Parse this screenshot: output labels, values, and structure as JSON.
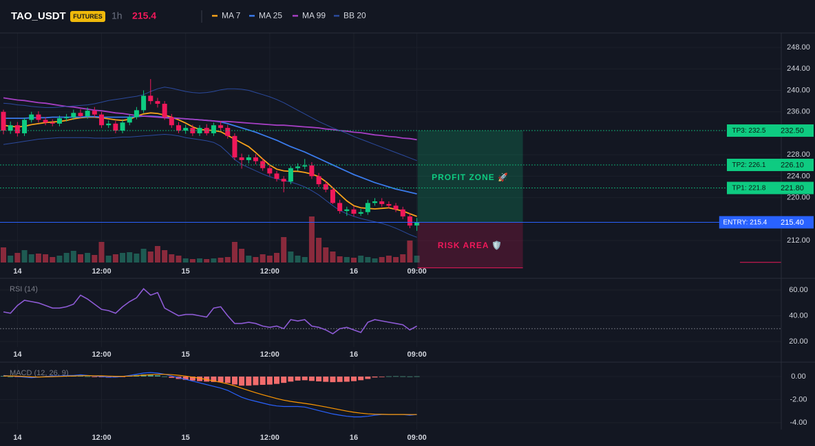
{
  "header": {
    "symbol": "TAO_USDT",
    "badge": "FUTURES",
    "interval": "1h",
    "price": 215.4
  },
  "chart_data": [
    {
      "type": "candlestick",
      "categories": [
        null,
        null,
        "14",
        null,
        null,
        null,
        null,
        null,
        null,
        null,
        null,
        null,
        null,
        null,
        "12:00",
        null,
        null,
        null,
        null,
        null,
        null,
        null,
        null,
        null,
        null,
        null,
        "15",
        null,
        null,
        null,
        null,
        null,
        null,
        null,
        null,
        null,
        null,
        null,
        "12:00",
        null,
        null,
        null,
        null,
        null,
        null,
        null,
        null,
        null,
        null,
        null,
        "16",
        null,
        null,
        null,
        null,
        null,
        null,
        null,
        null,
        "09:00"
      ],
      "open": [
        236,
        232.5,
        233.5,
        232,
        234.5,
        235.5,
        234.5,
        234,
        233.8,
        234.8,
        235,
        235.8,
        235.2,
        236.2,
        235.5,
        233.5,
        233.8,
        232.5,
        234,
        235,
        236.3,
        239,
        238,
        237.5,
        235,
        233.5,
        232.5,
        233,
        232,
        233,
        232,
        233.5,
        233,
        231.5,
        227.5,
        227,
        227.5,
        226.8,
        225.5,
        224.5,
        223.5,
        223,
        225.5,
        225.8,
        226,
        224,
        222.5,
        221.5,
        219,
        217.5,
        217.8,
        217,
        217.3,
        219,
        219.3,
        218.8,
        218.5,
        217.8,
        216.5,
        214.8
      ],
      "high": [
        236.4,
        234.2,
        234.1,
        234.9,
        236,
        236.1,
        235,
        234.6,
        235.3,
        235.6,
        236.4,
        236.5,
        236.8,
        236.9,
        236,
        234.4,
        234.3,
        234.6,
        235.5,
        236.9,
        240,
        242.1,
        238.6,
        238,
        235.6,
        234.1,
        233.6,
        233.6,
        233.5,
        233.7,
        234,
        234.2,
        233.6,
        232,
        228.2,
        228,
        228.1,
        227.3,
        226.2,
        225,
        224,
        225.9,
        226.4,
        227.2,
        226.6,
        224.6,
        223.1,
        222,
        219.6,
        218.3,
        218.4,
        217.9,
        219.6,
        219.9,
        219.9,
        219.3,
        219,
        218.3,
        217.1,
        216.2
      ],
      "low": [
        231.8,
        231.9,
        231.4,
        231.5,
        234,
        234,
        233.5,
        233.3,
        233.3,
        234.2,
        234.5,
        234.9,
        234.7,
        235,
        233,
        233,
        232,
        232,
        233.5,
        234.6,
        235.8,
        237.4,
        236.8,
        234.5,
        233,
        232,
        231.9,
        231.5,
        231.5,
        231.6,
        231.5,
        232.5,
        231,
        227,
        225.4,
        226.4,
        226.2,
        225,
        224,
        223,
        221,
        222.5,
        225,
        225.3,
        223.5,
        222,
        221,
        218.8,
        217,
        216.6,
        216.5,
        216.6,
        216.8,
        218.5,
        218.3,
        218,
        217.3,
        216,
        214.3,
        213.8
      ],
      "close": [
        232.5,
        233.5,
        232,
        234.5,
        235.5,
        234.5,
        234,
        233.8,
        234.8,
        235,
        235.8,
        235.2,
        236.2,
        235.5,
        233.5,
        233.8,
        232.5,
        234,
        235,
        236.3,
        239,
        238,
        237.5,
        235,
        233.5,
        232.5,
        233,
        232,
        233,
        232,
        233.5,
        233,
        231.5,
        227.5,
        227,
        227.5,
        226.8,
        225.5,
        224.5,
        223.5,
        223,
        225.5,
        225.8,
        226,
        224,
        222.5,
        221.5,
        219,
        217.5,
        217.8,
        217,
        217.3,
        219,
        219.3,
        218.8,
        218.5,
        217.8,
        216.5,
        214.8,
        215.4
      ],
      "up_color": "#0ecb81",
      "down_color": "#f0185a",
      "ylim": [
        207.9,
        250.7
      ],
      "yticks": [
        {
          "value": 248,
          "label": "248.00"
        },
        {
          "value": 244,
          "label": "244.00"
        },
        {
          "value": 240,
          "label": "240.00"
        },
        {
          "value": 236,
          "label": "236.00"
        },
        {
          "value": 228,
          "label": "228.00"
        },
        {
          "value": 224,
          "label": "224.00"
        },
        {
          "value": 220,
          "label": "220.00"
        },
        {
          "value": 212,
          "label": "212.00"
        }
      ],
      "grid": true,
      "series": [
        {
          "name": "MA 7",
          "color": "#f7a21b",
          "values": [
            233.5,
            233.3,
            233.2,
            233.3,
            233.6,
            233.8,
            234,
            234.1,
            234.2,
            234.4,
            234.7,
            234.9,
            235,
            235,
            234.9,
            234.7,
            234.5,
            234.4,
            234.6,
            235.2,
            235.6,
            235.8,
            235.7,
            235.4,
            235,
            234.5,
            233.9,
            233.2,
            232.7,
            232.6,
            232.5,
            232.3,
            231.6,
            230.9,
            230.2,
            229.5,
            228.4,
            227.2,
            226.1,
            225.3,
            225,
            224.9,
            224.9,
            224.7,
            224.4,
            223.9,
            223,
            221.8,
            220.6,
            219.4,
            218.5,
            218.1,
            218,
            217.9,
            218,
            218.1,
            217.8,
            217.5,
            217,
            216.5
          ]
        },
        {
          "name": "MA 25",
          "color": "#3a7bec",
          "values": [
            234.8,
            234.8,
            234.8,
            234.8,
            234.9,
            234.9,
            234.9,
            235,
            235,
            235,
            235,
            235,
            235.1,
            235.1,
            235,
            235,
            235,
            235,
            235,
            235.1,
            235.2,
            235.2,
            235.1,
            235,
            234.9,
            234.8,
            234.7,
            234.6,
            234.5,
            234.4,
            234.3,
            234.1,
            233.8,
            233.4,
            233,
            232.6,
            232.2,
            231.7,
            231.2,
            230.7,
            230.1,
            229.5,
            229,
            228.5,
            227.9,
            227.3,
            226.7,
            226.1,
            225.5,
            224.9,
            224.3,
            223.8,
            223.3,
            222.8,
            222.4,
            222,
            221.6,
            221.3,
            221,
            220.7
          ]
        },
        {
          "name": "MA 99",
          "color": "#a63fc4",
          "values": [
            238.6,
            238.4,
            238.2,
            238.1,
            237.9,
            237.7,
            237.6,
            237.4,
            237.2,
            237,
            236.9,
            236.7,
            236.5,
            236.3,
            236.2,
            236,
            235.8,
            235.7,
            235.5,
            235.3,
            235.2,
            235.1,
            235,
            234.9,
            234.8,
            234.8,
            234.7,
            234.6,
            234.5,
            234.4,
            234.3,
            234.2,
            234.2,
            234.1,
            234,
            233.9,
            233.8,
            233.7,
            233.6,
            233.5,
            233.5,
            233.4,
            233.3,
            233.2,
            233.1,
            233,
            232.8,
            232.7,
            232.5,
            232.4,
            232.2,
            232.1,
            231.9,
            231.7,
            231.6,
            231.4,
            231.3,
            231.1,
            231,
            230.8
          ]
        },
        {
          "name": "BB 20",
          "color": "#2b4a9e",
          "values": [
            237.6,
            237.5,
            237.3,
            237.2,
            237,
            236.9,
            236.8,
            236.8,
            236.9,
            237,
            237.1,
            237.2,
            237.3,
            237.5,
            237.8,
            238.1,
            238.3,
            238.5,
            238.7,
            238.9,
            239.2,
            239.8,
            240.3,
            240.6,
            240.4,
            240.1,
            239.8,
            239.6,
            239.5,
            239.6,
            239.8,
            240.1,
            240.3,
            240.3,
            240.2,
            240,
            239.6,
            239.2,
            238.8,
            238.3,
            237.7,
            237,
            236.3,
            235.6,
            234.9,
            234.2,
            233.6,
            233,
            232.5,
            232,
            231.4,
            230.9,
            230.4,
            229.9,
            229.4,
            228.9,
            228.4,
            227.9,
            227.4,
            226.9
          ],
          "lower_values": [
            229.9,
            230.1,
            230.3,
            230.5,
            230.7,
            230.9,
            231,
            231.1,
            231.2,
            231.2,
            231.2,
            231.2,
            231.2,
            231.1,
            231.1,
            231.1,
            231.2,
            231.3,
            231.3,
            231.4,
            231.5,
            231.6,
            231.7,
            231.8,
            231.7,
            231.5,
            231.2,
            231,
            230.8,
            230.6,
            230.3,
            229.6,
            228.4,
            227.1,
            226.2,
            225.6,
            225,
            224.4,
            223.9,
            223.5,
            223.2,
            222.9,
            222.5,
            222,
            221.3,
            220.5,
            219.5,
            218.5,
            217.6,
            217,
            216.5,
            216.1,
            215.8,
            215.5,
            215.2,
            214.8,
            214.3,
            213.7,
            213.1,
            212.6
          ]
        }
      ],
      "volume": {
        "values": [
          22,
          10,
          14,
          18,
          12,
          13,
          12,
          8,
          10,
          14,
          17,
          12,
          14,
          11,
          30,
          10,
          12,
          14,
          15,
          13,
          20,
          16,
          24,
          18,
          12,
          10,
          6,
          5,
          6,
          5,
          6,
          7,
          8,
          30,
          20,
          10,
          8,
          12,
          10,
          14,
          37,
          16,
          10,
          8,
          67,
          36,
          22,
          16,
          9,
          8,
          7,
          10,
          8,
          6,
          8,
          10,
          8,
          12,
          32,
          10
        ],
        "up_color": "#1e5a52",
        "down_color": "#8a2a3c"
      },
      "levels": [
        {
          "label": "TP3: 232.5",
          "value": 232.5,
          "value_label": "232.50",
          "color": "#0ecb81"
        },
        {
          "label": "TP2: 226.1",
          "value": 226.1,
          "value_label": "226.10",
          "color": "#0ecb81"
        },
        {
          "label": "TP1: 221.8",
          "value": 221.8,
          "value_label": "221.80",
          "color": "#0ecb81"
        },
        {
          "label": "ENTRY: 215.4",
          "value": 215.4,
          "value_label": "215.40",
          "color": "#2962ff"
        }
      ],
      "zones": {
        "profit": "PROFIT ZONE 🚀",
        "risk": "RISK AREA 🛡️",
        "stop": 206.9
      }
    },
    {
      "type": "line",
      "title": "RSI (14)",
      "color": "#8e5bd6",
      "values": [
        43,
        42,
        48,
        52,
        51,
        50,
        48,
        46,
        46,
        47,
        49,
        56,
        53,
        49,
        45,
        44,
        42,
        47,
        51,
        54,
        61,
        56,
        58,
        46,
        43,
        40,
        41,
        41,
        40,
        39,
        46,
        47,
        40,
        34,
        34,
        35,
        34,
        32,
        31,
        32,
        30,
        37,
        36,
        37,
        32,
        31,
        29,
        26,
        30,
        31,
        29,
        27,
        35,
        37,
        36,
        35,
        34,
        33,
        29,
        32
      ],
      "ylim": [
        15.7,
        67.5
      ],
      "yticks": [
        {
          "value": 60,
          "label": "60.00"
        },
        {
          "value": 40,
          "label": "40.00"
        },
        {
          "value": 20,
          "label": "20.00"
        }
      ],
      "level": 30
    },
    {
      "type": "macd",
      "title": "MACD (12, 26, 9)",
      "macd": [
        0.1,
        0.05,
        0,
        -0.05,
        -0.1,
        -0.05,
        0,
        0.05,
        0.05,
        0.1,
        0.1,
        0.15,
        0.1,
        0.05,
        0,
        -0.05,
        -0.05,
        0,
        0.1,
        0.2,
        0.3,
        0.35,
        0.3,
        0.2,
        0.05,
        -0.1,
        -0.25,
        -0.4,
        -0.55,
        -0.7,
        -0.85,
        -1,
        -1.2,
        -1.5,
        -1.8,
        -2,
        -2.15,
        -2.3,
        -2.45,
        -2.55,
        -2.6,
        -2.6,
        -2.6,
        -2.65,
        -2.8,
        -2.95,
        -3.1,
        -3.25,
        -3.35,
        -3.45,
        -3.5,
        -3.5,
        -3.45,
        -3.35,
        -3.3,
        -3.3,
        -3.3,
        -3.3,
        -3.35,
        -3.3
      ],
      "signal": [
        0.05,
        0.05,
        0.03,
        0,
        -0.03,
        -0.04,
        -0.03,
        -0.01,
        0.01,
        0.03,
        0.05,
        0.07,
        0.08,
        0.07,
        0.06,
        0.04,
        0.02,
        0.02,
        0.04,
        0.07,
        0.12,
        0.16,
        0.19,
        0.19,
        0.16,
        0.11,
        0.04,
        -0.05,
        -0.15,
        -0.26,
        -0.38,
        -0.5,
        -0.64,
        -0.81,
        -1.01,
        -1.21,
        -1.4,
        -1.58,
        -1.75,
        -1.91,
        -2.05,
        -2.16,
        -2.25,
        -2.33,
        -2.42,
        -2.53,
        -2.64,
        -2.76,
        -2.88,
        -3,
        -3.1,
        -3.18,
        -3.24,
        -3.27,
        -3.28,
        -3.29,
        -3.29,
        -3.29,
        -3.3,
        -3.3
      ],
      "histogram": [
        0.05,
        0,
        -0.03,
        -0.05,
        -0.07,
        -0.01,
        0.03,
        0.06,
        0.04,
        0.07,
        0.05,
        0.08,
        0.02,
        -0.02,
        -0.06,
        -0.09,
        -0.07,
        -0.02,
        0.06,
        0.13,
        0.18,
        0.19,
        0.11,
        0.01,
        -0.11,
        -0.21,
        -0.29,
        -0.35,
        -0.4,
        -0.44,
        -0.47,
        -0.5,
        -0.56,
        -0.69,
        -0.79,
        -0.79,
        -0.75,
        -0.72,
        -0.7,
        -0.64,
        -0.55,
        -0.44,
        -0.35,
        -0.32,
        -0.38,
        -0.42,
        -0.46,
        -0.49,
        -0.47,
        -0.45,
        -0.4,
        -0.32,
        -0.21,
        -0.08,
        -0.02,
        0.02,
        0.03,
        0.02,
        0.01,
        0.02
      ],
      "macd_color": "#2962ff",
      "signal_color": "#ff9800",
      "up_color": "#4f9a83",
      "down_color": "#f26c6c",
      "ylim": [
        -4.6,
        1.07
      ],
      "yticks": [
        {
          "value": 0,
          "label": "0.00"
        },
        {
          "value": -2,
          "label": "-2.00"
        },
        {
          "value": -4,
          "label": "-4.00"
        }
      ]
    }
  ]
}
